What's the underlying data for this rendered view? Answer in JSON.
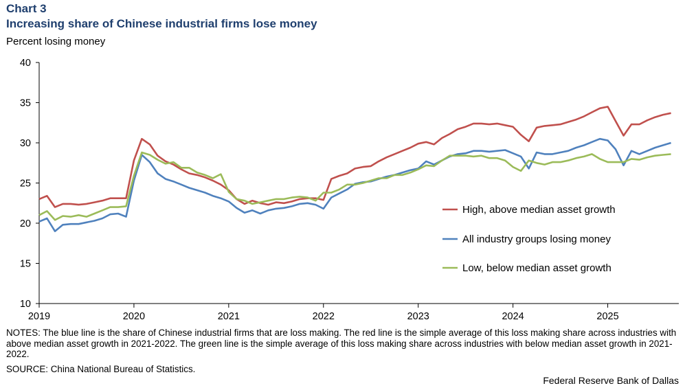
{
  "chart_data": {
    "type": "line",
    "chart_label": "Chart 3",
    "title": "Increasing share of Chinese industrial firms lose money",
    "ylabel": "Percent losing money",
    "xlabel": "",
    "ylim": [
      10,
      40
    ],
    "yticks": [
      "10",
      "15",
      "20",
      "25",
      "30",
      "35",
      "40"
    ],
    "xlim": [
      2019.0,
      2025.75
    ],
    "xticks": [
      "2019",
      "2020",
      "2021",
      "2022",
      "2023",
      "2024",
      "2025"
    ],
    "grid": false,
    "legend": "right",
    "series": [
      {
        "name": "High, above median asset growth",
        "color": "#c0504d",
        "x": [
          2019.0,
          2019.083,
          2019.167,
          2019.25,
          2019.333,
          2019.417,
          2019.5,
          2019.583,
          2019.667,
          2019.75,
          2019.833,
          2019.917,
          2020.0,
          2020.083,
          2020.167,
          2020.25,
          2020.333,
          2020.417,
          2020.5,
          2020.583,
          2020.667,
          2020.75,
          2020.833,
          2020.917,
          2021.0,
          2021.083,
          2021.167,
          2021.25,
          2021.333,
          2021.417,
          2021.5,
          2021.583,
          2021.667,
          2021.75,
          2021.833,
          2021.917,
          2022.0,
          2022.083,
          2022.167,
          2022.25,
          2022.333,
          2022.417,
          2022.5,
          2022.583,
          2022.667,
          2022.75,
          2022.833,
          2022.917,
          2023.0,
          2023.083,
          2023.167,
          2023.25,
          2023.333,
          2023.417,
          2023.5,
          2023.583,
          2023.667,
          2023.75,
          2023.833,
          2023.917,
          2024.0,
          2024.083,
          2024.167,
          2024.25,
          2024.333,
          2024.417,
          2024.5,
          2024.583,
          2024.667,
          2024.75,
          2024.833,
          2024.917,
          2025.0,
          2025.083,
          2025.167,
          2025.25,
          2025.333,
          2025.417,
          2025.5,
          2025.583,
          2025.667
        ],
        "values": [
          23.0,
          23.4,
          22.0,
          22.4,
          22.4,
          22.3,
          22.4,
          22.6,
          22.8,
          23.1,
          23.1,
          23.1,
          27.8,
          30.5,
          29.8,
          28.4,
          27.7,
          27.3,
          26.7,
          26.2,
          26.0,
          25.7,
          25.3,
          24.8,
          24.1,
          23.0,
          22.4,
          22.8,
          22.5,
          22.3,
          22.6,
          22.5,
          22.7,
          23.0,
          23.1,
          23.1,
          22.9,
          25.5,
          25.9,
          26.2,
          26.8,
          27.0,
          27.1,
          27.7,
          28.2,
          28.6,
          29.0,
          29.4,
          29.9,
          30.1,
          29.8,
          30.6,
          31.1,
          31.7,
          32.0,
          32.4,
          32.4,
          32.3,
          32.4,
          32.2,
          32.0,
          31.0,
          30.2,
          31.9,
          32.1,
          32.2,
          32.3,
          32.6,
          32.9,
          33.3,
          33.8,
          34.3,
          34.5,
          32.7,
          30.9,
          32.3,
          32.3,
          32.8,
          33.2,
          33.5,
          33.7
        ]
      },
      {
        "name": "All industry groups losing money",
        "color": "#4f81bd",
        "x": [
          2019.0,
          2019.083,
          2019.167,
          2019.25,
          2019.333,
          2019.417,
          2019.5,
          2019.583,
          2019.667,
          2019.75,
          2019.833,
          2019.917,
          2020.0,
          2020.083,
          2020.167,
          2020.25,
          2020.333,
          2020.417,
          2020.5,
          2020.583,
          2020.667,
          2020.75,
          2020.833,
          2020.917,
          2021.0,
          2021.083,
          2021.167,
          2021.25,
          2021.333,
          2021.417,
          2021.5,
          2021.583,
          2021.667,
          2021.75,
          2021.833,
          2021.917,
          2022.0,
          2022.083,
          2022.167,
          2022.25,
          2022.333,
          2022.417,
          2022.5,
          2022.583,
          2022.667,
          2022.75,
          2022.833,
          2022.917,
          2023.0,
          2023.083,
          2023.167,
          2023.25,
          2023.333,
          2023.417,
          2023.5,
          2023.583,
          2023.667,
          2023.75,
          2023.833,
          2023.917,
          2024.0,
          2024.083,
          2024.167,
          2024.25,
          2024.333,
          2024.417,
          2024.5,
          2024.583,
          2024.667,
          2024.75,
          2024.833,
          2024.917,
          2025.0,
          2025.083,
          2025.167,
          2025.25,
          2025.333,
          2025.417,
          2025.5,
          2025.583,
          2025.667
        ],
        "values": [
          20.2,
          20.6,
          19.0,
          19.8,
          19.9,
          19.9,
          20.1,
          20.3,
          20.6,
          21.1,
          21.2,
          20.8,
          25.3,
          28.5,
          27.6,
          26.2,
          25.5,
          25.2,
          24.8,
          24.4,
          24.1,
          23.8,
          23.4,
          23.1,
          22.7,
          21.9,
          21.3,
          21.6,
          21.2,
          21.6,
          21.8,
          21.9,
          22.1,
          22.4,
          22.5,
          22.3,
          21.8,
          23.2,
          23.7,
          24.2,
          24.9,
          25.1,
          25.2,
          25.5,
          25.8,
          26.0,
          26.3,
          26.6,
          26.8,
          27.7,
          27.3,
          27.8,
          28.3,
          28.6,
          28.7,
          29.0,
          29.0,
          28.9,
          29.0,
          29.1,
          28.7,
          28.3,
          26.8,
          28.8,
          28.6,
          28.6,
          28.8,
          29.0,
          29.4,
          29.7,
          30.1,
          30.5,
          30.3,
          29.2,
          27.2,
          29.0,
          28.6,
          29.0,
          29.4,
          29.7,
          30.0
        ]
      },
      {
        "name": "Low, below median asset growth",
        "color": "#9bbb59",
        "x": [
          2019.0,
          2019.083,
          2019.167,
          2019.25,
          2019.333,
          2019.417,
          2019.5,
          2019.583,
          2019.667,
          2019.75,
          2019.833,
          2019.917,
          2020.0,
          2020.083,
          2020.167,
          2020.25,
          2020.333,
          2020.417,
          2020.5,
          2020.583,
          2020.667,
          2020.75,
          2020.833,
          2020.917,
          2021.0,
          2021.083,
          2021.167,
          2021.25,
          2021.333,
          2021.417,
          2021.5,
          2021.583,
          2021.667,
          2021.75,
          2021.833,
          2021.917,
          2022.0,
          2022.083,
          2022.167,
          2022.25,
          2022.333,
          2022.417,
          2022.5,
          2022.583,
          2022.667,
          2022.75,
          2022.833,
          2022.917,
          2023.0,
          2023.083,
          2023.167,
          2023.25,
          2023.333,
          2023.417,
          2023.5,
          2023.583,
          2023.667,
          2023.75,
          2023.833,
          2023.917,
          2024.0,
          2024.083,
          2024.167,
          2024.25,
          2024.333,
          2024.417,
          2024.5,
          2024.583,
          2024.667,
          2024.75,
          2024.833,
          2024.917,
          2025.0,
          2025.083,
          2025.167,
          2025.25,
          2025.333,
          2025.417,
          2025.5,
          2025.583,
          2025.667
        ],
        "values": [
          21.0,
          21.5,
          20.4,
          20.9,
          20.8,
          21.0,
          20.8,
          21.2,
          21.6,
          22.0,
          22.0,
          22.1,
          25.9,
          28.8,
          28.5,
          27.9,
          27.4,
          27.6,
          26.9,
          26.9,
          26.3,
          26.0,
          25.6,
          26.1,
          23.9,
          23.0,
          22.8,
          22.4,
          22.6,
          22.8,
          23.0,
          23.0,
          23.2,
          23.3,
          23.2,
          22.8,
          23.8,
          23.8,
          24.2,
          24.8,
          24.8,
          25.0,
          25.3,
          25.6,
          25.6,
          26.0,
          26.0,
          26.3,
          26.7,
          27.2,
          27.1,
          27.8,
          28.4,
          28.4,
          28.4,
          28.3,
          28.4,
          28.1,
          28.1,
          27.8,
          27.0,
          26.5,
          27.8,
          27.5,
          27.3,
          27.6,
          27.6,
          27.8,
          28.1,
          28.3,
          28.6,
          28.0,
          27.6,
          27.6,
          27.6,
          28.0,
          27.9,
          28.2,
          28.4,
          28.5,
          28.6
        ]
      }
    ]
  },
  "notes": "NOTES: The blue line is the share of Chinese industrial firms that are loss making. The red line is the simple average of this loss making share across industries with above median asset growth in 2021-2022. The green line is the simple average of this loss making share across industries with below median asset growth in 2021-2022.",
  "source": "SOURCE: China National Bureau of Statistics.",
  "credit": "Federal Reserve Bank of Dallas"
}
